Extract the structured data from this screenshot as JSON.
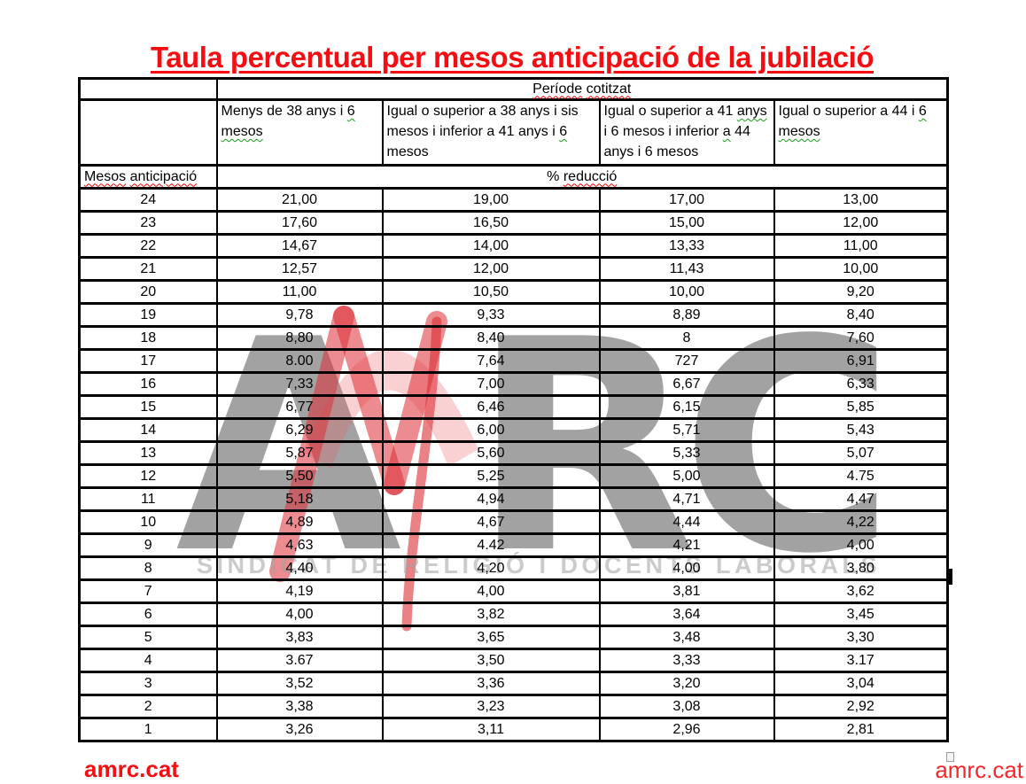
{
  "page": {
    "title": "Taula percentual per mesos anticipació de la jubilació",
    "footer_left": "amrc.cat",
    "footer_right": "amrc.cat"
  },
  "colors": {
    "title_red": "#f50d12",
    "squiggle_red": "#ff0000",
    "squiggle_green": "#18a018",
    "header_cell_bg": "#ececec",
    "table_border": "#000000",
    "watermark_gray": "#707070",
    "watermark_logo_red": "#e23a40"
  },
  "watermark": {
    "letter_a": "A",
    "letters_rc": "RC",
    "subtitle": "SINDICAT DE RELIGIÓ I DOCENTS LABORALS"
  },
  "table": {
    "period_header": [
      {
        "t": "Període",
        "u": "red"
      },
      {
        "t": " ",
        "u": null
      },
      {
        "t": "cotitzat",
        "u": "red"
      }
    ],
    "col_headers": [
      [
        {
          "t": "Menys de 38 anys i ",
          "u": null
        },
        {
          "t": "6",
          "u": "green"
        },
        {
          "t": " ",
          "u": null
        },
        {
          "t": "mesos",
          "u": "green"
        }
      ],
      [
        {
          "t": "Igual o superior a 38 anys i sis mesos i inferior a 41 anys i ",
          "u": null
        },
        {
          "t": "6",
          "u": "green"
        },
        {
          "t": " mesos",
          "u": null
        }
      ],
      [
        {
          "t": "Igual o superior a 41 ",
          "u": null
        },
        {
          "t": "anys",
          "u": "green"
        },
        {
          "t": " i 6 mesos i inferior ",
          "u": null
        },
        {
          "t": "a",
          "u": "green"
        },
        {
          "t": " 44 anys i 6 mesos",
          "u": null
        }
      ],
      [
        {
          "t": "Igual o superior a 44 i ",
          "u": null
        },
        {
          "t": "6",
          "u": "green"
        },
        {
          "t": " ",
          "u": null
        },
        {
          "t": "mesos",
          "u": "green"
        }
      ]
    ],
    "months_label": [
      {
        "t": "Mesos",
        "u": "red"
      },
      {
        "t": " ",
        "u": null
      },
      {
        "t": "anticipació",
        "u": "red"
      }
    ],
    "reduction_label": [
      {
        "t": "% ",
        "u": null
      },
      {
        "t": "reducció",
        "u": "red"
      }
    ],
    "rows": [
      {
        "months": "24",
        "values": [
          "21,00",
          "19,00",
          "17,00",
          "13,00"
        ]
      },
      {
        "months": "23",
        "values": [
          "17,60",
          "16,50",
          "15,00",
          "12,00"
        ]
      },
      {
        "months": "22",
        "values": [
          "14,67",
          "14,00",
          "13,33",
          "11,00"
        ]
      },
      {
        "months": "21",
        "values": [
          "12,57",
          "12,00",
          "11,43",
          "10,00"
        ]
      },
      {
        "months": "20",
        "values": [
          "11,00",
          "10,50",
          "10,00",
          "9,20"
        ]
      },
      {
        "months": "19",
        "values": [
          "9,78",
          "9,33",
          "8,89",
          "8,40"
        ]
      },
      {
        "months": "18",
        "values": [
          "8,80",
          "8,40",
          "8",
          "7,60"
        ]
      },
      {
        "months": "17",
        "values": [
          "8.00",
          "7,64",
          "727",
          "6,91"
        ]
      },
      {
        "months": "16",
        "values": [
          "7,33",
          "7,00",
          "6,67",
          "6,33"
        ]
      },
      {
        "months": "15",
        "values": [
          "6,77",
          "6,46",
          "6,15",
          "5,85"
        ]
      },
      {
        "months": "14",
        "values": [
          "6,29",
          "6,00",
          "5,71",
          "5,43"
        ]
      },
      {
        "months": "13",
        "values": [
          "5,87",
          "5,60",
          "5,33",
          "5,07"
        ]
      },
      {
        "months": "12",
        "values": [
          "5,50",
          "5,25",
          "5,00",
          "4.75"
        ]
      },
      {
        "months": "11",
        "values": [
          "5,18",
          "4,94",
          "4,71",
          "4,47"
        ]
      },
      {
        "months": "10",
        "values": [
          "4,89",
          "4,67",
          "4,44",
          "4,22"
        ]
      },
      {
        "months": "9",
        "values": [
          "4,63",
          "4.42",
          "4,21",
          "4,00"
        ]
      },
      {
        "months": "8",
        "values": [
          "4,40",
          "4,20",
          "4,00",
          "3,80"
        ]
      },
      {
        "months": "7",
        "values": [
          "4,19",
          "4,00",
          "3,81",
          "3,62"
        ]
      },
      {
        "months": "6",
        "values": [
          "4,00",
          "3,82",
          "3,64",
          "3,45"
        ]
      },
      {
        "months": "5",
        "values": [
          "3,83",
          "3,65",
          "3,48",
          "3,30"
        ]
      },
      {
        "months": "4",
        "values": [
          "3.67",
          "3,50",
          "3,33",
          "3.17"
        ]
      },
      {
        "months": "3",
        "values": [
          "3,52",
          "3,36",
          "3,20",
          "3,04"
        ]
      },
      {
        "months": "2",
        "values": [
          "3,38",
          "3,23",
          "3,08",
          "2,92"
        ]
      },
      {
        "months": "1",
        "values": [
          "3,26",
          "3,11",
          "2,96",
          "2,81"
        ]
      }
    ]
  }
}
